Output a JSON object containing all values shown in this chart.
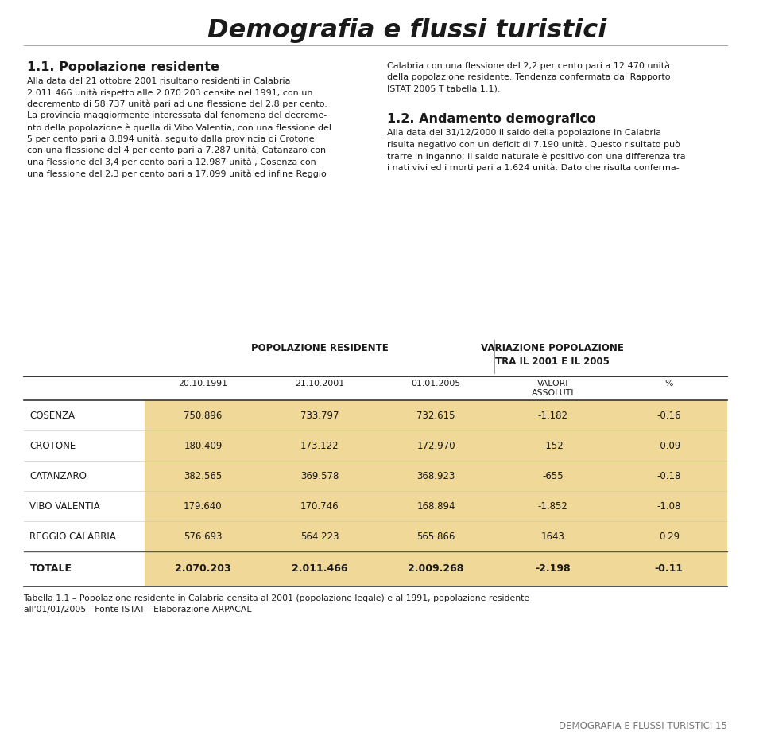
{
  "title": "Demografia e flussi turistici",
  "bg_color": "#ffffff",
  "title_color": "#1a1a1a",
  "section1_heading": "1.1. Popolazione residente",
  "section1_left_lines": [
    "Alla data del 21 ottobre 2001 risultano residenti in Calabria",
    "2.011.466 unità rispetto alle 2.070.203 censite nel 1991, con un",
    "decremento di 58.737 unità pari ad una flessione del 2,8 per cento.",
    "La provincia maggiormente interessata dal fenomeno del decreme-",
    "nto della popolazione è quella di Vibo Valentia, con una flessione del",
    "5 per cento pari a 8.894 unità, seguito dalla provincia di Crotone",
    "con una flessione del 4 per cento pari a 7.287 unità, Catanzaro con",
    "una flessione del 3,4 per cento pari a 12.987 unità , Cosenza con",
    "una flessione del 2,3 per cento pari a 17.099 unità ed infine Reggio"
  ],
  "section1_right_lines": [
    "Calabria con una flessione del 2,2 per cento pari a 12.470 unità",
    "della popolazione residente. Tendenza confermata dal Rapporto",
    "ISTAT 2005 T tabella 1.1)."
  ],
  "section2_heading": "1.2. Andamento demografico",
  "section2_right_lines": [
    "Alla data del 31/12/2000 il saldo della popolazione in Calabria",
    "risulta negativo con un deficit di 7.190 unità. Questo risultato può",
    "trarre in inganno; il saldo naturale è positivo con una differenza tra",
    "i nati vivi ed i morti pari a 1.624 unità. Dato che risulta conferma-"
  ],
  "table_header1": "POPOLAZIONE RESIDENTE",
  "table_header2": "VARIAZIONE POPOLAZIONE\nTRA IL 2001 E IL 2005",
  "col_headers": [
    "20.10.1991",
    "21.10.2001",
    "01.01.2005",
    "VALORI\nASSOLUTI",
    "%"
  ],
  "rows": [
    [
      "COSENZA",
      "750.896",
      "733.797",
      "732.615",
      "-1.182",
      "-0.16"
    ],
    [
      "CROTONE",
      "180.409",
      "173.122",
      "172.970",
      "-152",
      "-0.09"
    ],
    [
      "CATANZARO",
      "382.565",
      "369.578",
      "368.923",
      "-655",
      "-0.18"
    ],
    [
      "VIBO VALENTIA",
      "179.640",
      "170.746",
      "168.894",
      "-1.852",
      "-1.08"
    ],
    [
      "REGGIO CALABRIA",
      "576.693",
      "564.223",
      "565.866",
      "1643",
      "0.29"
    ]
  ],
  "totale_row": [
    "TOTALE",
    "2.070.203",
    "2.011.466",
    "2.009.268",
    "-2.198",
    "-0.11"
  ],
  "table_note_line1": "Tabella 1.1 – Popolazione residente in Calabria censita al 2001 (popolazione legale) e al 1991, popolazione residente",
  "table_note_line2": "all'01/01/2005 - Fonte ISTAT - Elaborazione ARPACAL",
  "footer_text": "DEMOGRAFIA E FLUSSI TURISTICI 15",
  "table_bg_color": "#f0d898",
  "table_header_color": "#1a1a1a",
  "row_label_color": "#1a1a1a",
  "heading_color": "#1a1a1a",
  "text_color": "#1a1a1a",
  "footer_color": "#777777"
}
